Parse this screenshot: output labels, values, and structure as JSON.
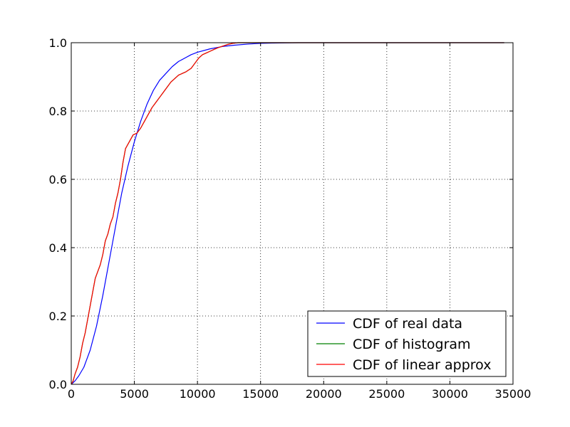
{
  "chart_data": {
    "type": "line",
    "title": "",
    "xlabel": "",
    "ylabel": "",
    "xlim": [
      0,
      35000
    ],
    "ylim": [
      0.0,
      1.0
    ],
    "xticks": [
      0,
      5000,
      10000,
      15000,
      20000,
      25000,
      30000,
      35000
    ],
    "xtick_labels": [
      "0",
      "5000",
      "10000",
      "15000",
      "20000",
      "25000",
      "30000",
      "35000"
    ],
    "yticks": [
      0.0,
      0.2,
      0.4,
      0.6,
      0.8,
      1.0
    ],
    "ytick_labels": [
      "0.0",
      "0.2",
      "0.4",
      "0.6",
      "0.8",
      "1.0"
    ],
    "grid": true,
    "legend_position": "lower-right",
    "series": [
      {
        "name": "CDF of real data",
        "color": "#0000ff",
        "x": [
          0,
          300,
          600,
          1000,
          1500,
          2000,
          2500,
          3000,
          3500,
          4000,
          4500,
          5000,
          5500,
          6000,
          6500,
          7000,
          7500,
          8000,
          8500,
          9000,
          9500,
          10000,
          11000,
          12000,
          13000,
          14000,
          15000,
          16000,
          18000,
          20000,
          25000,
          30000,
          34300
        ],
        "y": [
          0.0,
          0.01,
          0.025,
          0.05,
          0.1,
          0.17,
          0.26,
          0.36,
          0.46,
          0.56,
          0.64,
          0.71,
          0.77,
          0.82,
          0.86,
          0.89,
          0.91,
          0.93,
          0.945,
          0.955,
          0.965,
          0.972,
          0.982,
          0.989,
          0.993,
          0.996,
          0.998,
          0.999,
          1.0,
          1.0,
          1.0,
          1.0,
          1.0
        ]
      },
      {
        "name": "CDF of histogram",
        "color": "#008000",
        "x": [
          0,
          150,
          300,
          500,
          700,
          900,
          1100,
          1300,
          1500,
          1700,
          1900,
          2100,
          2300,
          2500,
          2700,
          2900,
          3100,
          3300,
          3500,
          3700,
          3900,
          4100,
          4300,
          4600,
          4900,
          5200,
          5500,
          5800,
          6100,
          6400,
          6700,
          7000,
          7300,
          7600,
          7900,
          8200,
          8500,
          8800,
          9100,
          9500,
          9800,
          10100,
          10400,
          10700,
          11000,
          11300,
          11600,
          12000,
          12400,
          12800,
          13200,
          14000,
          15000,
          17000,
          20000,
          25000,
          30000,
          34300
        ],
        "y": [
          0.0,
          0.01,
          0.03,
          0.05,
          0.08,
          0.12,
          0.15,
          0.19,
          0.23,
          0.27,
          0.31,
          0.33,
          0.35,
          0.38,
          0.42,
          0.44,
          0.47,
          0.49,
          0.53,
          0.56,
          0.6,
          0.65,
          0.69,
          0.71,
          0.73,
          0.735,
          0.75,
          0.77,
          0.79,
          0.81,
          0.825,
          0.84,
          0.855,
          0.87,
          0.885,
          0.895,
          0.905,
          0.91,
          0.915,
          0.925,
          0.94,
          0.955,
          0.965,
          0.97,
          0.975,
          0.98,
          0.985,
          0.99,
          0.995,
          0.998,
          1.0,
          1.0,
          1.0,
          1.0,
          1.0,
          1.0,
          1.0,
          1.0
        ]
      },
      {
        "name": "CDF of linear approx",
        "color": "#ff0000",
        "x": [
          0,
          150,
          300,
          500,
          700,
          900,
          1100,
          1300,
          1500,
          1700,
          1900,
          2100,
          2300,
          2500,
          2700,
          2900,
          3100,
          3300,
          3500,
          3700,
          3900,
          4100,
          4300,
          4600,
          4900,
          5200,
          5500,
          5800,
          6100,
          6400,
          6700,
          7000,
          7300,
          7600,
          7900,
          8200,
          8500,
          8800,
          9100,
          9500,
          9800,
          10100,
          10400,
          10700,
          11000,
          11300,
          11600,
          12000,
          12400,
          12800,
          13200,
          14000,
          15000,
          17000,
          20000,
          25000,
          30000,
          34300
        ],
        "y": [
          0.0,
          0.01,
          0.03,
          0.05,
          0.08,
          0.12,
          0.15,
          0.19,
          0.23,
          0.27,
          0.31,
          0.33,
          0.35,
          0.38,
          0.42,
          0.44,
          0.47,
          0.49,
          0.53,
          0.56,
          0.6,
          0.65,
          0.69,
          0.71,
          0.73,
          0.735,
          0.75,
          0.77,
          0.79,
          0.81,
          0.825,
          0.84,
          0.855,
          0.87,
          0.885,
          0.895,
          0.905,
          0.91,
          0.915,
          0.925,
          0.94,
          0.955,
          0.965,
          0.97,
          0.975,
          0.98,
          0.985,
          0.99,
          0.995,
          0.998,
          1.0,
          1.0,
          1.0,
          1.0,
          1.0,
          1.0,
          1.0,
          1.0
        ]
      }
    ]
  }
}
